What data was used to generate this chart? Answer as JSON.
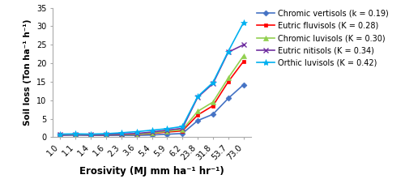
{
  "x_labels": [
    "1.0",
    "1.1",
    "1.4",
    "1.6",
    "2.3",
    "3.6",
    "5.4",
    "5.9",
    "6.2",
    "23.8",
    "31.8",
    "53.7",
    "73.0"
  ],
  "x_positions": [
    0,
    1,
    2,
    3,
    4,
    5,
    6,
    7,
    8,
    9,
    10,
    11,
    12
  ],
  "series": [
    {
      "label": "Chromic vertisols (k = 0.19)",
      "color": "#4472C4",
      "marker": "D",
      "markersize": 3.5,
      "markeredgewidth": 0.5,
      "values": [
        0.5,
        0.55,
        0.5,
        0.5,
        0.5,
        0.5,
        0.6,
        0.8,
        1.0,
        4.5,
        6.2,
        10.5,
        14.2
      ]
    },
    {
      "label": "Eutric fluvisols (K = 0.28)",
      "color": "#FF0000",
      "marker": "s",
      "markersize": 3.5,
      "markeredgewidth": 0.5,
      "values": [
        0.65,
        0.7,
        0.65,
        0.65,
        0.7,
        0.75,
        1.0,
        1.4,
        1.7,
        6.0,
        8.5,
        15.0,
        20.5
      ]
    },
    {
      "label": "Chromic luvisols (K = 0.30)",
      "color": "#92D050",
      "marker": "^",
      "markersize": 4,
      "markeredgewidth": 0.5,
      "values": [
        0.7,
        0.75,
        0.7,
        0.7,
        0.75,
        0.8,
        1.1,
        1.6,
        2.0,
        7.0,
        9.5,
        16.0,
        22.0
      ]
    },
    {
      "label": "Eutric nitisols (K = 0.34)",
      "color": "#7030A0",
      "marker": "x",
      "markersize": 5,
      "markeredgewidth": 1.0,
      "values": [
        0.75,
        0.8,
        0.75,
        0.75,
        0.85,
        1.0,
        1.4,
        1.9,
        2.4,
        10.8,
        14.5,
        23.0,
        25.0
      ]
    },
    {
      "label": "Orthic luvisols (K = 0.42)",
      "color": "#00B0F0",
      "marker": "*",
      "markersize": 6,
      "markeredgewidth": 0.5,
      "values": [
        0.85,
        0.9,
        0.85,
        0.95,
        1.2,
        1.5,
        1.9,
        2.3,
        2.9,
        11.0,
        14.8,
        23.2,
        31.0
      ]
    }
  ],
  "xlabel": "Erosivity (MJ mm ha⁻¹ hr⁻¹)",
  "ylabel": "Soil loss (Ton ha⁻¹ h⁻¹)",
  "ylim": [
    0,
    35
  ],
  "yticks": [
    0,
    5,
    10,
    15,
    20,
    25,
    30,
    35
  ],
  "background_color": "#FFFFFF",
  "legend_fontsize": 7.0,
  "axis_label_fontsize": 8.5,
  "tick_fontsize": 7.0,
  "spine_color": "#AAAAAA",
  "linewidth": 1.2
}
